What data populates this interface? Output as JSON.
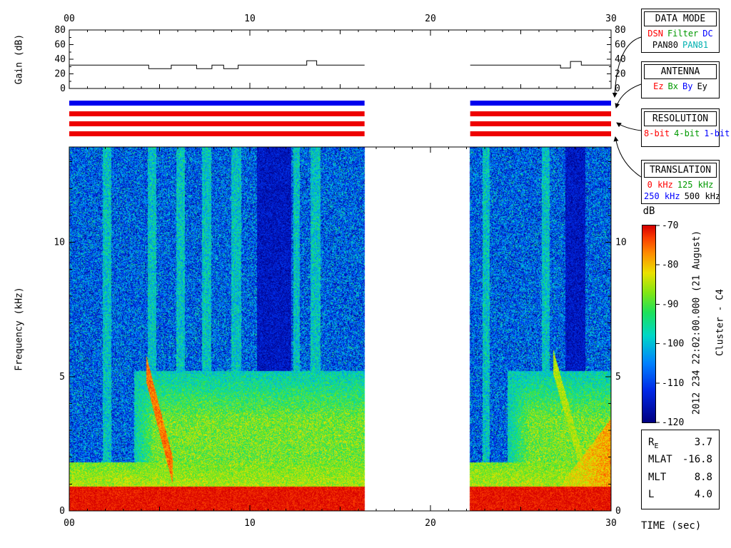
{
  "side_text": {
    "timestamp": "2012 234 22:02:00.000 (21 August)",
    "spacecraft": "Cluster - C4"
  },
  "status_bars": {
    "segments": [
      [
        0,
        16.35
      ],
      [
        22.2,
        30
      ]
    ],
    "rows": [
      {
        "name": "data-mode",
        "value": "DC",
        "color": "#0000ee"
      },
      {
        "name": "antenna",
        "value": "Ez",
        "color": "#ee0000"
      },
      {
        "name": "resolution",
        "value": "8-bit",
        "color": "#ee0000"
      },
      {
        "name": "translation",
        "value": "0 kHz",
        "color": "#ee0000"
      }
    ]
  },
  "legend": {
    "data_mode": {
      "title": "DATA MODE",
      "rows": [
        [
          {
            "text": "DSN",
            "color": "#ff0000"
          },
          {
            "text": "Filter",
            "color": "#009900"
          },
          {
            "text": "DC",
            "color": "#0000ff"
          }
        ],
        [
          {
            "text": "PAN80",
            "color": "#000000"
          },
          {
            "text": "PAN81",
            "color": "#00b0b0"
          }
        ]
      ]
    },
    "antenna": {
      "title": "ANTENNA",
      "rows": [
        [
          {
            "text": "Ez",
            "color": "#ff0000"
          },
          {
            "text": "Bx",
            "color": "#009900"
          },
          {
            "text": "By",
            "color": "#0000ff"
          },
          {
            "text": "Ey",
            "color": "#000000"
          }
        ]
      ]
    },
    "resolution": {
      "title": "RESOLUTION",
      "rows": [
        [
          {
            "text": "8-bit",
            "color": "#ff0000"
          },
          {
            "text": "4-bit",
            "color": "#009900"
          },
          {
            "text": "1-bit",
            "color": "#0000ff"
          }
        ]
      ]
    },
    "translation": {
      "title": "TRANSLATION",
      "rows": [
        [
          {
            "text": "0 kHz",
            "color": "#ff0000"
          },
          {
            "text": "125 kHz",
            "color": "#009900"
          }
        ],
        [
          {
            "text": "250 kHz",
            "color": "#0000ff"
          },
          {
            "text": "500 kHz",
            "color": "#000000"
          }
        ]
      ]
    }
  },
  "ephemeris": {
    "rows": [
      {
        "label": "R",
        "sub": "E",
        "value": "3.7"
      },
      {
        "label": "MLAT",
        "sub": "",
        "value": "-16.8"
      },
      {
        "label": "MLT",
        "sub": "",
        "value": "8.8"
      },
      {
        "label": "L",
        "sub": "",
        "value": "4.0"
      }
    ]
  },
  "chart_data": [
    {
      "type": "line",
      "name": "gain",
      "ylabel": "Gain (dB)",
      "ylim": [
        0,
        80
      ],
      "xlim": [
        0,
        30
      ],
      "yticks": [
        0,
        20,
        40,
        60,
        80
      ],
      "xticks": [
        {
          "t": 0,
          "label": "00"
        },
        {
          "t": 10,
          "label": "10"
        },
        {
          "t": 20,
          "label": "20"
        },
        {
          "t": 30,
          "label": "30"
        }
      ],
      "segments": [
        {
          "t_end": 16.35,
          "points": [
            [
              0,
              32
            ],
            [
              4.4,
              27
            ],
            [
              5.65,
              32
            ],
            [
              7.05,
              27
            ],
            [
              7.9,
              32
            ],
            [
              8.55,
              27
            ],
            [
              9.35,
              32
            ],
            [
              13.15,
              38
            ],
            [
              13.7,
              32
            ]
          ]
        },
        {
          "t_end": 30,
          "points": [
            [
              22.2,
              32
            ],
            [
              27.2,
              28
            ],
            [
              27.75,
              37
            ],
            [
              28.35,
              32
            ]
          ]
        }
      ]
    },
    {
      "type": "heatmap",
      "name": "spectrogram",
      "xlabel": "TIME (sec)",
      "ylabel": "Frequency (kHz)",
      "xlim": [
        0,
        30
      ],
      "ylim": [
        0,
        13.55
      ],
      "yticks": [
        {
          "f": 0,
          "label": "0"
        },
        {
          "f": 5,
          "label": "5"
        },
        {
          "f": 10,
          "label": "10"
        }
      ],
      "xticks": [
        {
          "t": 0,
          "label": "00"
        },
        {
          "t": 10,
          "label": "10"
        },
        {
          "t": 20,
          "label": "20"
        },
        {
          "t": 30,
          "label": "30"
        }
      ],
      "data_gap": [
        16.35,
        22.2
      ],
      "segments": [
        [
          0,
          16.35
        ],
        [
          22.2,
          30
        ]
      ],
      "colorbar": {
        "label": "dB",
        "range": [
          -120,
          -70
        ],
        "ticks": [
          -70,
          -80,
          -90,
          -100,
          -110,
          -120
        ]
      },
      "colormap": [
        {
          "db": -120,
          "rgb": [
            0,
            0,
            130
          ]
        },
        {
          "db": -112,
          "rgb": [
            0,
            40,
            230
          ]
        },
        {
          "db": -105,
          "rgb": [
            0,
            130,
            255
          ]
        },
        {
          "db": -98,
          "rgb": [
            0,
            215,
            200
          ]
        },
        {
          "db": -92,
          "rgb": [
            30,
            225,
            90
          ]
        },
        {
          "db": -87,
          "rgb": [
            130,
            230,
            20
          ]
        },
        {
          "db": -82,
          "rgb": [
            235,
            225,
            0
          ]
        },
        {
          "db": -77,
          "rgb": [
            255,
            140,
            0
          ]
        },
        {
          "db": -73,
          "rgb": [
            250,
            60,
            0
          ]
        },
        {
          "db": -70,
          "rgb": [
            215,
            0,
            0
          ]
        }
      ],
      "features": {
        "bottom_band": {
          "f_max": 0.9,
          "db": -71
        },
        "bottom_fringe": {
          "f_max": 1.8,
          "db": -82
        },
        "wash": {
          "windows": [
            [
              3.6,
              16.35
            ],
            [
              24.3,
              30
            ]
          ],
          "f_max": 5.2,
          "db": -88
        },
        "stripes": {
          "db": -99,
          "t": [
            [
              1.85,
              2.3
            ],
            [
              4.35,
              4.8
            ],
            [
              5.9,
              6.4
            ],
            [
              7.35,
              7.85
            ],
            [
              8.95,
              9.5
            ],
            [
              12.4,
              12.75
            ],
            [
              13.35,
              13.9
            ],
            [
              22.9,
              23.3
            ],
            [
              26.2,
              26.6
            ]
          ]
        },
        "dark_bands": {
          "f_min": 4.0,
          "db": -115,
          "t": [
            [
              10.4,
              12.3
            ],
            [
              27.5,
              28.6
            ]
          ]
        },
        "funnels": [
          {
            "t0": 4.25,
            "t1": 5.7,
            "f_top": 5.3,
            "slope": -2.6,
            "width": 0.5,
            "db": -76
          },
          {
            "t0": 26.8,
            "t1": 28.5,
            "f_top": 5.6,
            "slope": -2.4,
            "width": 0.45,
            "db": -85
          }
        ],
        "hot_corner": {
          "t0": 26.6,
          "t1": 30,
          "f_max": 3.0,
          "db": -78
        }
      }
    }
  ]
}
